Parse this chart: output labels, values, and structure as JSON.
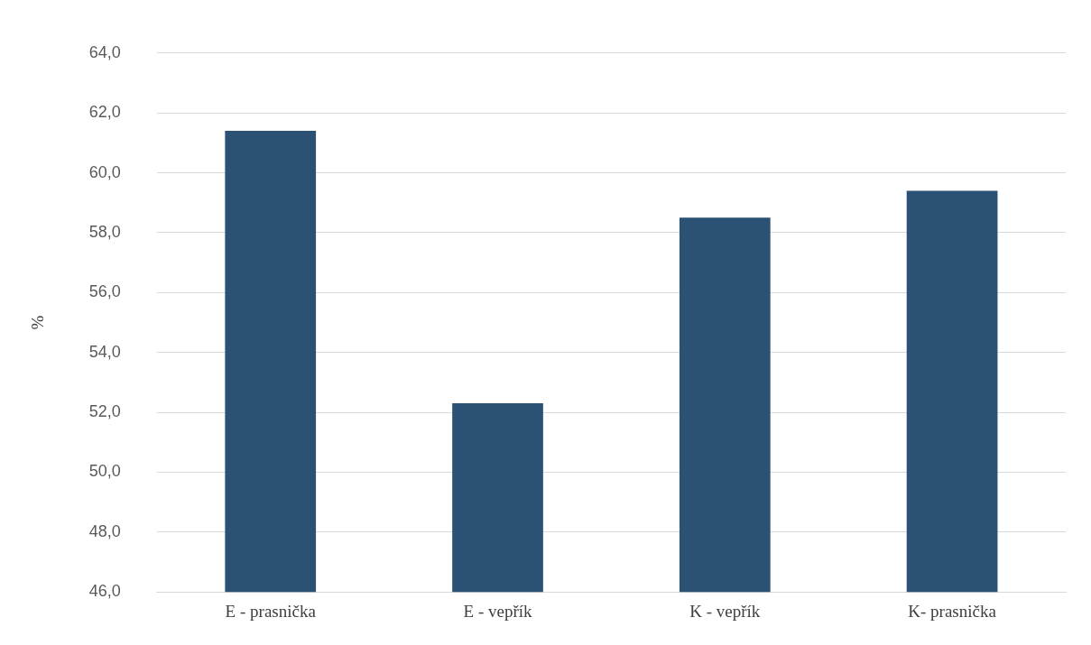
{
  "chart_data": {
    "type": "bar",
    "ylabel": "%",
    "categories": [
      "E - prasnička",
      "E - vepřík",
      "K - vepřík",
      "K- prasnička"
    ],
    "values": [
      61.4,
      52.3,
      58.5,
      59.4
    ],
    "color": "#2b5275",
    "ylim": [
      46,
      64
    ],
    "yticks": [
      {
        "value": 46,
        "label": "46,0"
      },
      {
        "value": 48,
        "label": "48,0"
      },
      {
        "value": 50,
        "label": "50,0"
      },
      {
        "value": 52,
        "label": "52,0"
      },
      {
        "value": 54,
        "label": "54,0"
      },
      {
        "value": 56,
        "label": "56,0"
      },
      {
        "value": 58,
        "label": "58,0"
      },
      {
        "value": 60,
        "label": "60,0"
      },
      {
        "value": 62,
        "label": "62,0"
      },
      {
        "value": 64,
        "label": "64,0"
      }
    ],
    "grid": "y",
    "legend": false
  }
}
